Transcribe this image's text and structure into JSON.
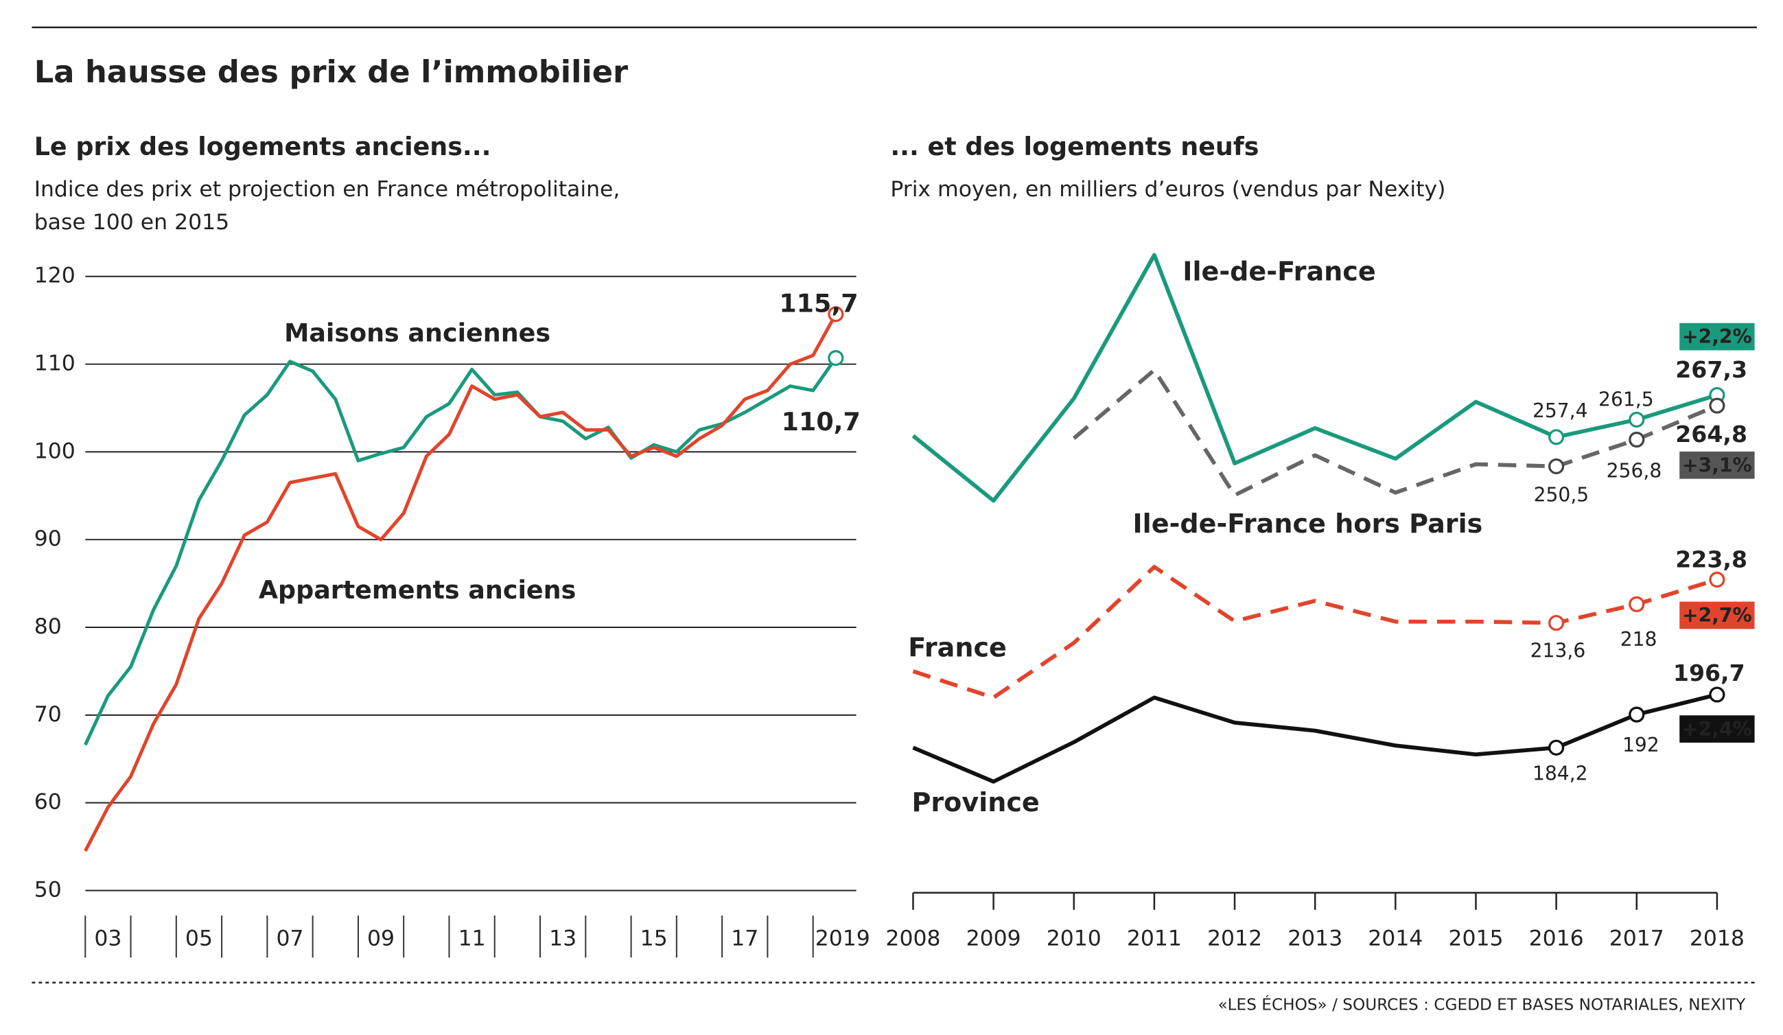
{
  "title": "La hausse des prix de l’immobilier",
  "source": "«LES ÉCHOS» / SOURCES : CGEDD ET BASES NOTARIALES, NEXITY",
  "chart_data": [
    {
      "type": "line",
      "title": "Le prix des logements anciens...",
      "subtitle": [
        "Indice des prix et projection en France métropolitaine,",
        "base 100 en 2015"
      ],
      "x": [
        2003,
        2003.5,
        2004,
        2004.5,
        2005,
        2005.5,
        2006,
        2006.5,
        2007,
        2007.5,
        2008,
        2008.5,
        2009,
        2009.5,
        2010,
        2010.5,
        2011,
        2011.5,
        2012,
        2012.5,
        2013,
        2013.5,
        2014,
        2014.5,
        2015,
        2015.5,
        2016,
        2016.5,
        2017,
        2017.5,
        2018,
        2018.5,
        2019,
        2019.5
      ],
      "series": [
        {
          "name": "Maisons anciennes",
          "color": "#1a9a7c",
          "end_label": "110,7",
          "values": [
            66.6,
            72.2,
            75.5,
            82,
            87,
            94.5,
            99,
            104.2,
            106.5,
            110.3,
            109.2,
            106,
            99,
            99.8,
            100.5,
            104,
            105.5,
            109.4,
            106.5,
            106.8,
            104,
            103.5,
            101.5,
            102.8,
            99.3,
            100.8,
            100,
            102.5,
            103.2,
            104.5,
            106,
            107.5,
            107,
            110.7
          ]
        },
        {
          "name": "Appartements anciens",
          "color": "#e0452c",
          "end_label": "115,7",
          "values": [
            54.5,
            59.5,
            63,
            69,
            73.5,
            81,
            85,
            90.5,
            92,
            96.5,
            97,
            97.5,
            91.5,
            90,
            93,
            99.5,
            102,
            107.5,
            106,
            106.5,
            104,
            104.5,
            102.5,
            102.5,
            99.5,
            100.5,
            99.5,
            101.5,
            103,
            106,
            107,
            110,
            111,
            115.7
          ]
        }
      ],
      "xlim": [
        2003,
        2019.95
      ],
      "xticks": [
        {
          "value": 2003.5,
          "label": "03"
        },
        {
          "value": 2005.5,
          "label": "05"
        },
        {
          "value": 2007.5,
          "label": "07"
        },
        {
          "value": 2009.5,
          "label": "09"
        },
        {
          "value": 2011.5,
          "label": "11"
        },
        {
          "value": 2013.5,
          "label": "13"
        },
        {
          "value": 2015.5,
          "label": "15"
        },
        {
          "value": 2017.5,
          "label": "17"
        },
        {
          "value": 2019.5,
          "label": "2019"
        }
      ],
      "ylim": [
        50,
        120
      ],
      "yticks": [
        50,
        60,
        70,
        80,
        90,
        100,
        110,
        120
      ],
      "grid": true
    },
    {
      "type": "line",
      "title": "... et des logements neufs",
      "subtitle": [
        "Prix moyen, en milliers d’euros (vendus par Nexity)"
      ],
      "categories": [
        "2008",
        "2009",
        "2010",
        "2011",
        "2012",
        "2013",
        "2014",
        "2015",
        "2016",
        "2017",
        "2018"
      ],
      "series": [
        {
          "name": "Ile-de-France",
          "color": "#1a9a7c",
          "dashed": false,
          "badge": "+2,2%",
          "values": [
            257.7,
            242.4,
            266.5,
            300.3,
            251.2,
            259.5,
            252.3,
            265.7,
            257.4,
            261.5,
            267.3
          ],
          "value_labels": [
            null,
            null,
            null,
            null,
            null,
            null,
            null,
            null,
            "257,4",
            "261,5",
            "267,3"
          ]
        },
        {
          "name": "Ile-de-France hors Paris",
          "color": "#666666",
          "dashed": true,
          "badge": "+3,1%",
          "values": [
            null,
            null,
            257.1,
            273.2,
            243.7,
            253.1,
            244.3,
            251,
            250.5,
            256.8,
            264.8
          ],
          "value_labels": [
            null,
            null,
            null,
            null,
            null,
            null,
            null,
            null,
            "250,5",
            "256,8",
            "264,8"
          ]
        },
        {
          "name": "France",
          "color": "#e0452c",
          "dashed": true,
          "badge": "+2,7%",
          "values": [
            202.2,
            196,
            208.9,
            226.8,
            214,
            218.8,
            213.9,
            213.9,
            213.6,
            218,
            223.8
          ],
          "value_labels": [
            null,
            null,
            null,
            null,
            null,
            null,
            null,
            null,
            "213,6",
            "218",
            "223,8"
          ]
        },
        {
          "name": "Province",
          "color": "#111111",
          "dashed": false,
          "badge": "+2,4%",
          "values": [
            184.2,
            176.2,
            185.5,
            196,
            190.1,
            188.2,
            184.7,
            182.6,
            184.2,
            192,
            196.7
          ],
          "value_labels": [
            null,
            null,
            null,
            null,
            null,
            null,
            null,
            null,
            "184,2",
            "192",
            "196,7"
          ]
        }
      ],
      "ylim": [
        150,
        310
      ]
    }
  ]
}
